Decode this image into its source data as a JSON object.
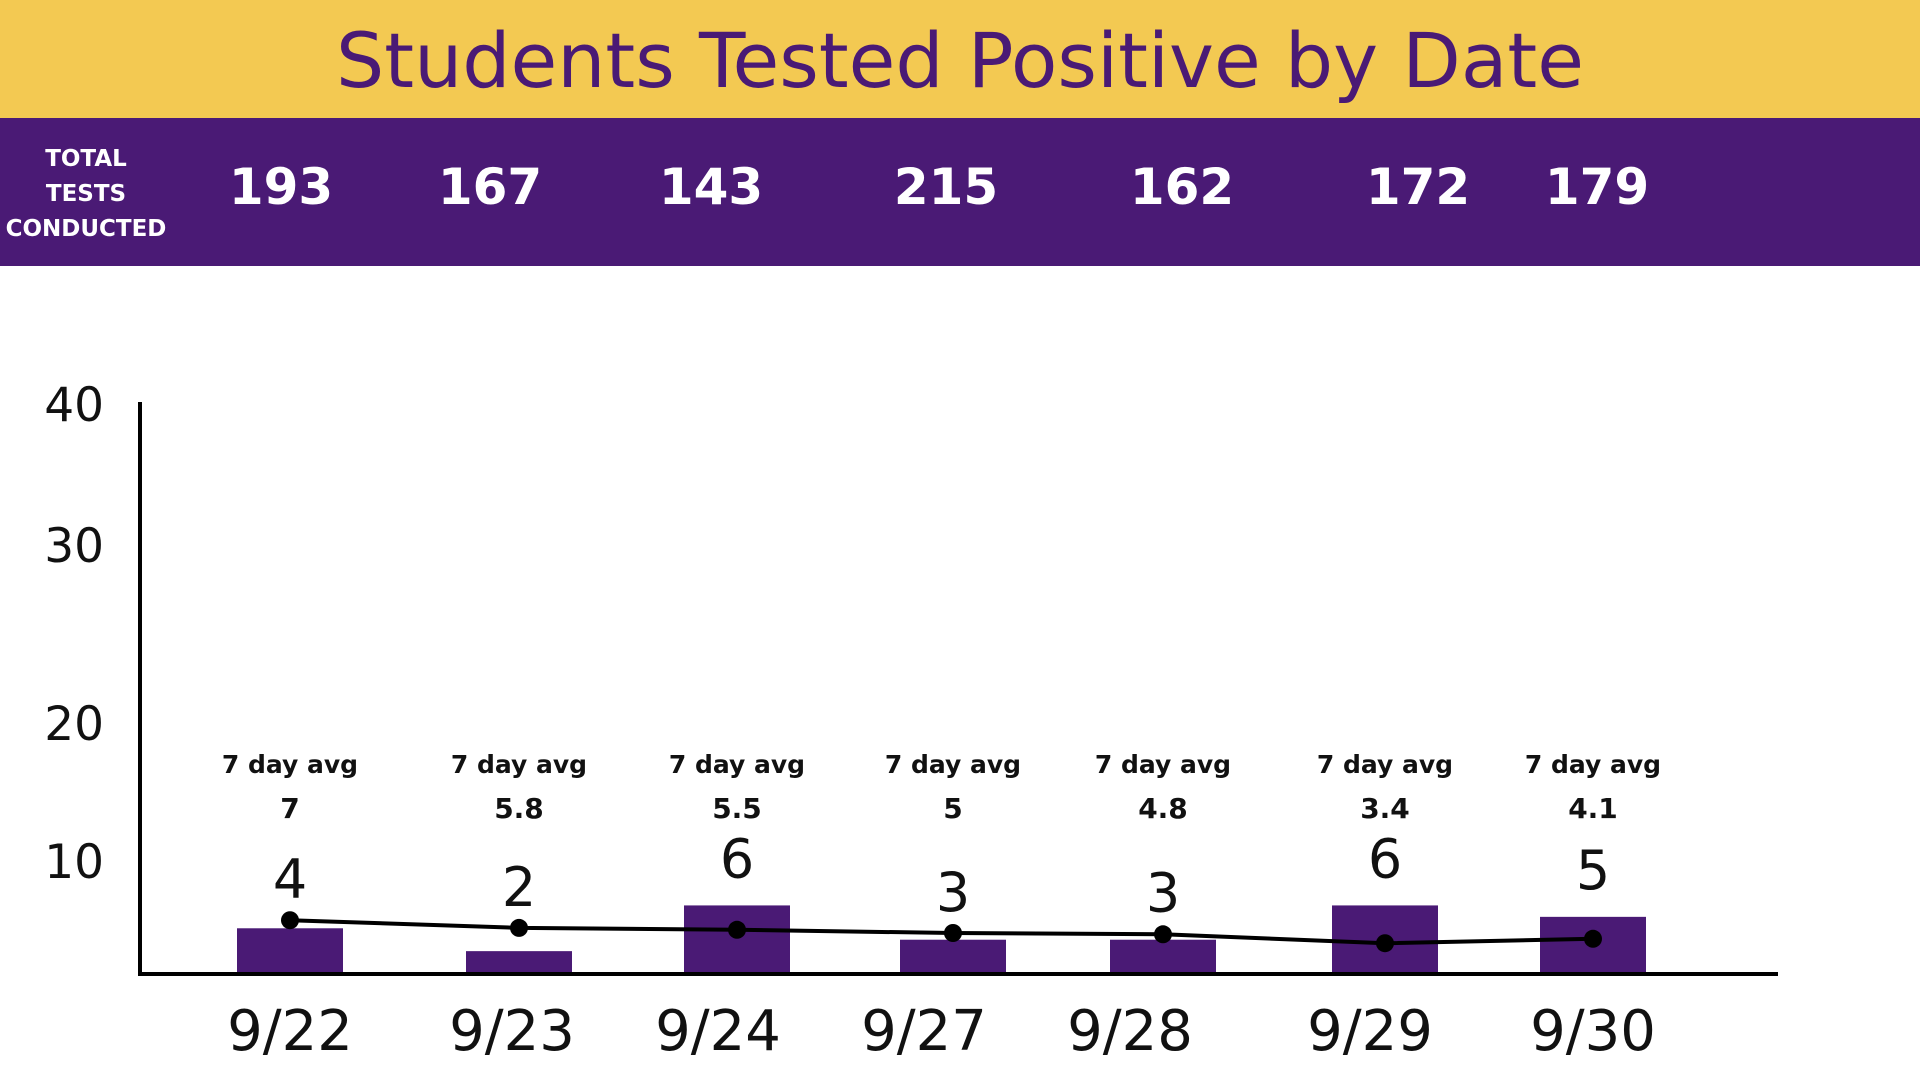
{
  "title": "Students Tested Positive by Date",
  "tests": {
    "label_lines": [
      "TOTAL",
      "TESTS",
      "CONDUCTED"
    ],
    "values": [
      "193",
      "167",
      "143",
      "215",
      "162",
      "172",
      "179"
    ]
  },
  "colors": {
    "title_band": "#F3C952",
    "brand_purple": "#4A1A75",
    "bar_fill": "#4A1A75",
    "avg_line": "#000000",
    "axis": "#000000"
  },
  "chart_data": {
    "type": "bar",
    "title": "Students Tested Positive by Date",
    "xlabel": "",
    "ylabel": "",
    "categories": [
      "9/22",
      "9/23",
      "9/24",
      "9/27",
      "9/28",
      "9/29",
      "9/30"
    ],
    "series": [
      {
        "values": [
          4,
          2,
          6,
          3,
          3,
          6,
          5
        ]
      },
      {
        "type": "line",
        "values": [
          7,
          5.8,
          5.5,
          5,
          4.8,
          3.4,
          4.1
        ]
      }
    ],
    "bar_labels": [
      "4",
      "2",
      "6",
      "3",
      "3",
      "6",
      "5"
    ],
    "avg_caption": "7 day avg",
    "avg_labels": [
      "7",
      "5.8",
      "5.5",
      "5",
      "4.8",
      "3.4",
      "4.1"
    ],
    "y_ticks": [
      "10",
      "20",
      "30",
      "40"
    ],
    "ylim": [
      0,
      40
    ],
    "grid": false,
    "legend": "none"
  }
}
